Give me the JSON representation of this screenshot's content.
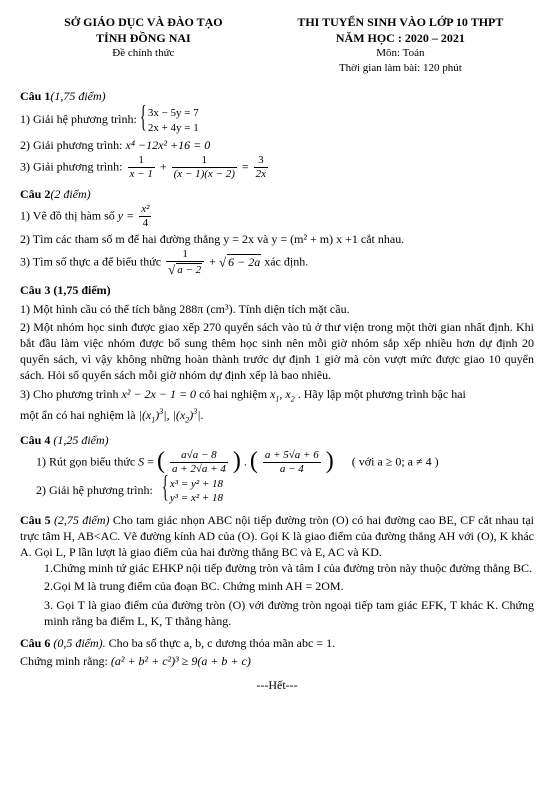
{
  "header": {
    "left": {
      "line1": "SỞ GIÁO DỤC VÀ ĐÀO TẠO",
      "line2": "TỈNH ĐỒNG NAI",
      "sub": "Đề chính thức"
    },
    "right": {
      "line1": "THI TUYỂN SINH VÀO LỚP 10 THPT",
      "line2": "NĂM HỌC : 2020 – 2021",
      "sub1": "Môn: Toán",
      "sub2": "Thời gian làm bài: 120 phút"
    }
  },
  "q1": {
    "title": "Câu 1",
    "points": "(1,75 điểm)",
    "p1_label": "1) Giải hệ phương trình: ",
    "p1_eq1": "3x − 5y = 7",
    "p1_eq2": "2x + 4y = 1",
    "p2": "2) Giải phương trình: ",
    "p2_eq": "x⁴ −12x² +16 = 0",
    "p3": "3) Giải phương trình: ",
    "p3_f1n": "1",
    "p3_f1d": "x − 1",
    "p3_f2n": "1",
    "p3_f2d": "(x − 1)(x − 2)",
    "p3_f3n": "3",
    "p3_f3d": "2x"
  },
  "q2": {
    "title": "Câu 2",
    "points": "(2 điểm)",
    "p1_label": "1) Vẽ đồ thị hàm số ",
    "p1_fn": "x²",
    "p1_fd": "4",
    "p2": "2) Tìm các tham số m để hai đường thẳng y = 2x  và y = (m² + m) x +1 cắt nhau.",
    "p3_label": "3) Tìm số thực a để  biểu thức ",
    "p3_f1n": "1",
    "p3_f1d": "a − 2",
    "p3_sqrt": "6 − 2a",
    "p3_tail": " xác định."
  },
  "q3": {
    "title": "Câu 3 (1,75 điểm)",
    "p1": "1) Một hình cầu có thể tích bằng 288π   (cm³). Tính diện tích mặt cầu.",
    "p2": "2) Một nhóm học sinh được giao xếp 270 quyển sách vào tủ ở thư viện trong một thời gian nhất định. Khi bắt đầu làm việc nhóm được bổ sung thêm học sinh nên mỗi giờ nhóm sắp xếp nhiều hơn dự định 20 quyển sách, vì vậy không những hoàn thành trước dự định 1 giờ mà còn vượt mức được giao 10 quyển sách. Hỏi số quyển sách mỗi giờ nhóm dự định xếp là bao nhiêu.",
    "p3a": "3) Cho phương trình ",
    "p3_eq": "x² − 2x − 1 = 0",
    "p3b": " có hai nghiệm ",
    "p3c": ". Hãy lập một phương trình bậc hai",
    "p3d": "một ẩn có hai nghiệm là "
  },
  "q4": {
    "title": "Câu 4",
    "points": "(1,25 điểm)",
    "p1_label": "1) Rút gọn biểu thức ",
    "p1_f1n": "a√a − 8",
    "p1_f1d": "a + 2√a + 4",
    "p1_f2n": "a + 5√a + 6",
    "p1_f2d": "a − 4",
    "p1_cond": "( với  a ≥ 0; a ≠ 4 )",
    "p2_label": "2) Giải hệ phương trình:",
    "p2_eq1": "x³ = y² + 18",
    "p2_eq2": "y³ = x² + 18"
  },
  "q5": {
    "title": "Câu 5",
    "points": "(2,75 điểm)",
    "intro": " Cho tam giác nhọn ABC nội tiếp đường tròn (O) có hai đường cao BE, CF cắt nhau tại trực tâm H, AB<AC. Vẽ đường kính AD của (O). Gọi K là giao điểm của đường thẳng AH với (O), K khác A. Gọi L, P lần lượt là giao điểm của hai đường thẳng BC và E, AC và KD.",
    "p1": "1.Chứng minh tứ giác EHKP nội tiếp đường tròn và tâm I của đường tròn này thuộc đường thẳng BC.",
    "p2": "2.Gọi M là trung điểm của đoạn BC. Chứng minh AH = 2OM.",
    "p3": "3.  Gọi T là giao điểm của đường tròn (O) với đường tròn ngoại tiếp tam giác EFK, T khác K. Chứng minh rằng ba điểm L, K, T thẳng hàng."
  },
  "q6": {
    "title": "Câu 6",
    "points": "(0,5 điểm).",
    "intro": " Cho ba số thực a, b, c dương thỏa mãn abc = 1.",
    "line2": "Chứng minh rằng:  ",
    "eq": "(a² + b² + c²)³ ≥ 9(a + b + c)"
  },
  "footer": "---Hết---"
}
